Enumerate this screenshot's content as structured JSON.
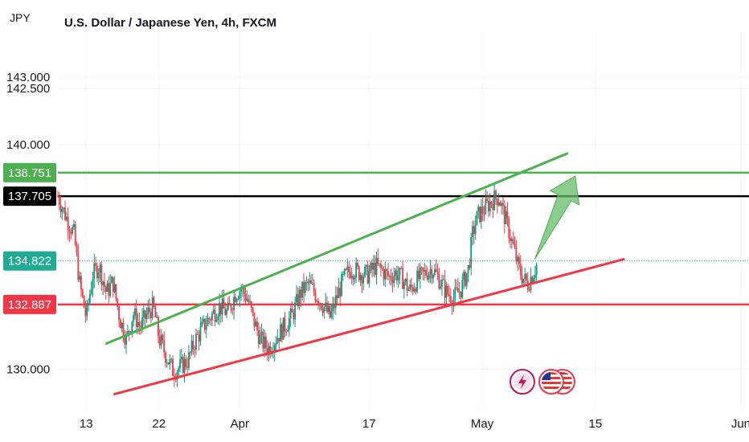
{
  "header": {
    "currency": "JPY",
    "title": "U.S. Dollar / Japanese Yen, 4h, FXCM"
  },
  "icons": {
    "events": [
      "lightning-icon",
      "us-flag-icon",
      "us-flag-icon"
    ]
  },
  "chart_data": {
    "type": "candlestick",
    "ylim": [
      128.2,
      145.0
    ],
    "y_ticks": [
      "143.000",
      "142.500",
      "140.000",
      "130.000"
    ],
    "x_ticks": [
      "13",
      "22",
      "Apr",
      "17",
      "May",
      "15",
      "Jun"
    ],
    "x_tick_days": [
      13,
      22,
      32,
      48,
      62,
      76,
      94
    ],
    "x_start_day": 9.5,
    "x_end_day": 95,
    "price_badges": [
      {
        "label": "138.751",
        "value": 138.751,
        "color": "#4caf50"
      },
      {
        "label": "137.705",
        "value": 137.705,
        "color": "#000000"
      },
      {
        "label": "134.822",
        "value": 134.822,
        "color": "#22ab94"
      },
      {
        "label": "132.887",
        "value": 132.887,
        "color": "#f23645"
      }
    ],
    "horizontal_lines": [
      {
        "value": 138.751,
        "color": "#4caf50"
      },
      {
        "value": 137.705,
        "color": "#000000"
      },
      {
        "value": 132.887,
        "color": "#f23645"
      }
    ],
    "current_price_line": {
      "value": 134.822,
      "color": "#22ab94"
    },
    "trend_lines": [
      {
        "name": "channel-top",
        "color": "#4caf50",
        "points": [
          [
            15.5,
            131.15
          ],
          [
            72.5,
            139.6
          ]
        ]
      },
      {
        "name": "channel-bottom",
        "color": "#f23645",
        "points": [
          [
            16.5,
            128.9
          ],
          [
            79.5,
            134.9
          ]
        ]
      }
    ],
    "arrow": {
      "color": "#66bb6a",
      "from": [
        68.5,
        134.9
      ],
      "to": [
        73.5,
        138.6
      ]
    },
    "price_path": [
      [
        9.5,
        137.7
      ],
      [
        10.5,
        136.8
      ],
      [
        11.5,
        136.0
      ],
      [
        12.2,
        133.8
      ],
      [
        13.0,
        132.3
      ],
      [
        13.8,
        134.2
      ],
      [
        14.6,
        134.6
      ],
      [
        15.5,
        133.4
      ],
      [
        16.3,
        133.9
      ],
      [
        17.2,
        132.2
      ],
      [
        18.0,
        131.3
      ],
      [
        18.8,
        132.5
      ],
      [
        19.7,
        131.9
      ],
      [
        20.6,
        132.5
      ],
      [
        21.3,
        132.8
      ],
      [
        22.0,
        131.4
      ],
      [
        22.9,
        130.6
      ],
      [
        23.8,
        129.9
      ],
      [
        24.6,
        130.1
      ],
      [
        25.6,
        130.4
      ],
      [
        26.5,
        131.3
      ],
      [
        27.5,
        131.9
      ],
      [
        28.5,
        132.4
      ],
      [
        29.5,
        132.8
      ],
      [
        30.5,
        132.5
      ],
      [
        31.5,
        133.4
      ],
      [
        32.2,
        133.6
      ],
      [
        33.0,
        133.1
      ],
      [
        33.7,
        132.2
      ],
      [
        34.6,
        131.3
      ],
      [
        35.5,
        130.9
      ],
      [
        36.5,
        131.4
      ],
      [
        37.5,
        131.9
      ],
      [
        38.5,
        132.4
      ],
      [
        39.5,
        133.4
      ],
      [
        40.5,
        133.8
      ],
      [
        41.5,
        133.3
      ],
      [
        42.4,
        132.8
      ],
      [
        43.2,
        132.3
      ],
      [
        44.0,
        133.2
      ],
      [
        44.8,
        134.0
      ],
      [
        45.8,
        134.5
      ],
      [
        46.8,
        134.3
      ],
      [
        47.8,
        134.2
      ],
      [
        48.8,
        134.6
      ],
      [
        49.6,
        134.4
      ],
      [
        50.5,
        134.1
      ],
      [
        51.3,
        134.3
      ],
      [
        52.2,
        134.0
      ],
      [
        53.0,
        133.5
      ],
      [
        54.0,
        134.0
      ],
      [
        55.0,
        134.3
      ],
      [
        55.8,
        134.5
      ],
      [
        56.7,
        134.0
      ],
      [
        57.6,
        133.4
      ],
      [
        58.5,
        133.2
      ],
      [
        59.4,
        133.6
      ],
      [
        60.3,
        134.5
      ],
      [
        60.8,
        136.0
      ],
      [
        61.4,
        136.8
      ],
      [
        62.4,
        137.2
      ],
      [
        63.2,
        137.5
      ],
      [
        64.0,
        137.7
      ],
      [
        64.6,
        137.0
      ],
      [
        65.2,
        136.3
      ],
      [
        65.8,
        135.5
      ],
      [
        66.4,
        134.6
      ],
      [
        67.0,
        134.1
      ],
      [
        67.6,
        133.8
      ],
      [
        68.3,
        134.3
      ],
      [
        68.9,
        134.8
      ]
    ]
  }
}
